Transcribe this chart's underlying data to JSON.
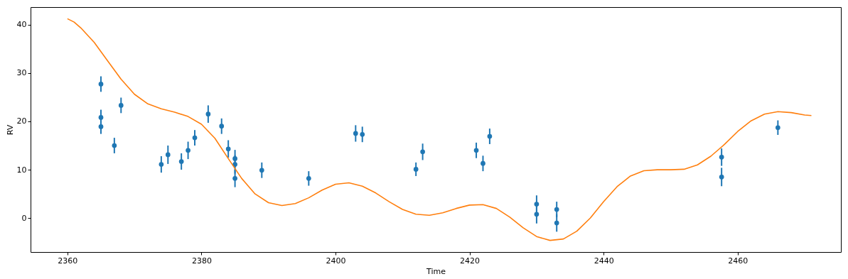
{
  "chart_data": {
    "type": "scatter",
    "xlabel": "Time",
    "ylabel": "RV",
    "xlim": [
      2354.5,
      2475.4
    ],
    "ylim": [
      -7.0,
      43.6
    ],
    "xticks": [
      2360,
      2380,
      2400,
      2420,
      2440,
      2460
    ],
    "yticks": [
      0,
      10,
      20,
      30,
      40
    ],
    "grid": false,
    "marker": "circle",
    "series": [
      {
        "color": "#1f77b4",
        "x": [
          2365,
          2365,
          2365,
          2367,
          2368,
          2374,
          2375,
          2377,
          2378,
          2379,
          2381,
          2383,
          2384,
          2385,
          2385,
          2385,
          2389,
          2396,
          2403,
          2404,
          2412,
          2413,
          2421,
          2422,
          2423,
          2430,
          2430,
          2433,
          2433,
          2457.6,
          2457.6,
          2466
        ],
        "values": [
          27.7,
          20.8,
          18.9,
          15.0,
          23.3,
          11.1,
          13.1,
          11.7,
          14.0,
          16.6,
          21.5,
          19.0,
          14.3,
          12.3,
          11.1,
          8.2,
          9.9,
          8.2,
          17.5,
          17.3,
          10.1,
          13.7,
          14.0,
          11.3,
          16.9,
          2.9,
          0.8,
          1.8,
          -1.0,
          12.6,
          8.5,
          18.7
        ],
        "errors": [
          1.6,
          1.6,
          1.5,
          1.6,
          1.6,
          1.7,
          1.9,
          1.7,
          1.8,
          1.6,
          1.8,
          1.6,
          1.8,
          1.8,
          1.9,
          1.8,
          1.6,
          1.5,
          1.7,
          1.6,
          1.4,
          1.7,
          1.6,
          1.6,
          1.6,
          1.8,
          1.9,
          1.6,
          1.8,
          1.8,
          1.9,
          1.5
        ]
      },
      {
        "type": "line",
        "color": "#ff7f0e",
        "marker": "none",
        "line_style": "solid",
        "x": [
          2360,
          2361,
          2362,
          2364,
          2366,
          2368,
          2370,
          2372,
          2374,
          2376,
          2378,
          2380,
          2382,
          2384,
          2386,
          2388,
          2390,
          2392,
          2394,
          2396,
          2398,
          2400,
          2402,
          2404,
          2406,
          2408,
          2410,
          2412,
          2414,
          2416,
          2418,
          2420,
          2422,
          2424,
          2426,
          2428,
          2430,
          2432,
          2434,
          2436,
          2438,
          2440,
          2442,
          2444,
          2446,
          2448,
          2450,
          2452,
          2454,
          2456,
          2458,
          2460,
          2462,
          2464,
          2466,
          2468,
          2470,
          2471
        ],
        "values": [
          41.2,
          40.5,
          39.3,
          36.3,
          32.5,
          28.7,
          25.6,
          23.6,
          22.6,
          21.9,
          21.0,
          19.4,
          16.5,
          12.3,
          8.2,
          5.0,
          3.2,
          2.6,
          3.0,
          4.2,
          5.8,
          7.0,
          7.3,
          6.6,
          5.2,
          3.4,
          1.8,
          0.8,
          0.6,
          1.1,
          2.0,
          2.7,
          2.8,
          2.0,
          0.2,
          -2.0,
          -3.8,
          -4.6,
          -4.3,
          -2.7,
          0.0,
          3.4,
          6.5,
          8.7,
          9.8,
          10.0,
          10.0,
          10.1,
          11.0,
          12.8,
          15.2,
          17.9,
          20.1,
          21.5,
          22.0,
          21.8,
          21.3,
          21.2
        ]
      }
    ]
  }
}
